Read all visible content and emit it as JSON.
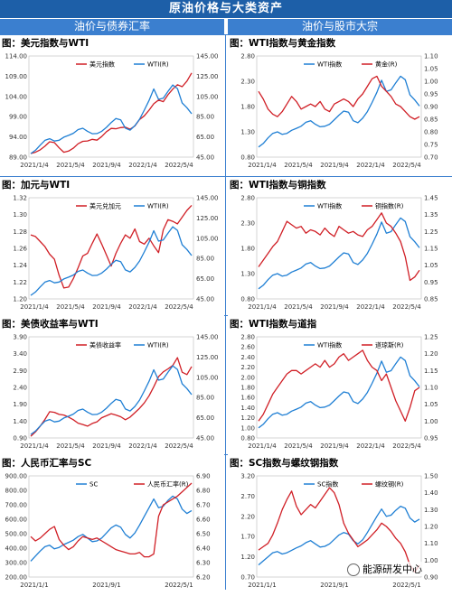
{
  "header": {
    "title": "原油价格与大类资产",
    "left_section": "油价与债券汇率",
    "right_section": "油价与股市大宗"
  },
  "watermark": "能源研发中心",
  "colors": {
    "red": "#d01f26",
    "blue": "#1f7fd4"
  },
  "chart_data": [
    {
      "title": "图：美元指数与WTI",
      "type": "line",
      "x_ticks": [
        "2021/1/4",
        "2021/5/4",
        "2021/9/4",
        "2022/1/4",
        "2022/5/4"
      ],
      "yleft": {
        "ticks": [
          "89.00",
          "94.00",
          "99.00",
          "104.00",
          "109.00",
          "114.00"
        ],
        "lim": [
          89,
          114
        ]
      },
      "yright": {
        "ticks": [
          "45.00",
          "65.00",
          "85.00",
          "105.00",
          "125.00",
          "145.00"
        ],
        "lim": [
          45,
          145
        ]
      },
      "series": [
        {
          "name": "美元指数",
          "color": "red",
          "axis": "left",
          "values": [
            89.9,
            90.2,
            90.8,
            91.7,
            92.8,
            92.6,
            91.3,
            90.2,
            90.5,
            91.2,
            92.3,
            92.9,
            93.0,
            93.4,
            93.2,
            94.1,
            95.3,
            96.1,
            96.0,
            96.3,
            96.4,
            95.9,
            96.7,
            98.3,
            99.2,
            100.6,
            102.2,
            103.1,
            102.7,
            104.4,
            105.8,
            106.9,
            106.4,
            107.8,
            109.8
          ]
        },
        {
          "name": "WTI(R)",
          "color": "blue",
          "axis": "right",
          "values": [
            48.5,
            51.8,
            56.9,
            61.6,
            63.2,
            60.9,
            61.7,
            64.7,
            66.5,
            68.6,
            72.2,
            73.6,
            70.5,
            68.1,
            68.3,
            70.5,
            74.5,
            79.2,
            83.2,
            81.9,
            73.7,
            71.7,
            76.2,
            82.5,
            91.4,
            101.1,
            112.4,
            102.1,
            103.2,
            109.9,
            116.3,
            112.8,
            98.6,
            93.8,
            87.9
          ]
        }
      ]
    },
    {
      "title": "图：WTI指数与黄金指数",
      "type": "line",
      "x_ticks": [
        "2021/1/4",
        "2021/5/4",
        "2021/9/4",
        "2022/1/4",
        "2022/5/4"
      ],
      "yleft": {
        "ticks": [
          "0.80",
          "1.30",
          "1.80",
          "2.30",
          "2.80"
        ],
        "lim": [
          0.8,
          2.8
        ]
      },
      "yright": {
        "ticks": [
          "0.70",
          "0.75",
          "0.80",
          "0.85",
          "0.90",
          "0.95",
          "1.00",
          "1.05",
          "1.10"
        ],
        "lim": [
          0.7,
          1.1
        ]
      },
      "series": [
        {
          "name": "WTI指数",
          "color": "blue",
          "axis": "left",
          "values": [
            1.0,
            1.07,
            1.18,
            1.27,
            1.3,
            1.25,
            1.27,
            1.33,
            1.37,
            1.41,
            1.49,
            1.52,
            1.45,
            1.4,
            1.41,
            1.45,
            1.54,
            1.63,
            1.71,
            1.69,
            1.52,
            1.48,
            1.57,
            1.7,
            1.88,
            2.08,
            2.32,
            2.1,
            2.13,
            2.27,
            2.4,
            2.33,
            2.03,
            1.93,
            1.81
          ]
        },
        {
          "name": "黄金(R)",
          "color": "red",
          "axis": "right",
          "values": [
            0.96,
            0.93,
            0.89,
            0.87,
            0.86,
            0.88,
            0.91,
            0.94,
            0.92,
            0.89,
            0.9,
            0.91,
            0.9,
            0.92,
            0.89,
            0.88,
            0.91,
            0.92,
            0.93,
            0.92,
            0.9,
            0.93,
            0.95,
            0.98,
            1.01,
            1.02,
            0.98,
            0.96,
            0.94,
            0.91,
            0.9,
            0.88,
            0.86,
            0.85,
            0.86
          ]
        }
      ]
    },
    {
      "title": "图：加元与WTI",
      "type": "line",
      "x_ticks": [
        "2021/1/4",
        "2021/5/4",
        "2021/9/4",
        "2022/1/4",
        "2022/5/4"
      ],
      "yleft": {
        "ticks": [
          "1.20",
          "1.22",
          "1.24",
          "1.26",
          "1.28",
          "1.30",
          "1.32"
        ],
        "lim": [
          1.2,
          1.32
        ]
      },
      "yright": {
        "ticks": [
          "45.00",
          "65.00",
          "85.00",
          "105.00",
          "125.00",
          "145.00"
        ],
        "lim": [
          45,
          145
        ]
      },
      "series": [
        {
          "name": "美元兑加元",
          "color": "red",
          "axis": "left",
          "values": [
            1.276,
            1.274,
            1.268,
            1.262,
            1.253,
            1.247,
            1.228,
            1.213,
            1.214,
            1.224,
            1.237,
            1.251,
            1.254,
            1.266,
            1.277,
            1.265,
            1.252,
            1.239,
            1.254,
            1.266,
            1.276,
            1.272,
            1.283,
            1.268,
            1.265,
            1.272,
            1.263,
            1.255,
            1.282,
            1.294,
            1.292,
            1.289,
            1.297,
            1.305,
            1.311
          ]
        },
        {
          "name": "WTI(R)",
          "color": "blue",
          "axis": "right",
          "values": [
            48.5,
            51.8,
            56.9,
            61.6,
            63.2,
            60.9,
            61.7,
            64.7,
            66.5,
            68.6,
            72.2,
            73.6,
            70.5,
            68.1,
            68.3,
            70.5,
            74.5,
            79.2,
            83.2,
            81.9,
            73.7,
            71.7,
            76.2,
            82.5,
            91.4,
            101.1,
            112.4,
            102.1,
            103.2,
            109.9,
            116.3,
            112.8,
            98.6,
            93.8,
            87.9
          ]
        }
      ]
    },
    {
      "title": "图：WTI指数与铜指数",
      "type": "line",
      "x_ticks": [
        "2021/1/4",
        "2021/5/4",
        "2021/9/4",
        "2022/1/4",
        "2022/5/4"
      ],
      "yleft": {
        "ticks": [
          "0.80",
          "1.30",
          "1.80",
          "2.30",
          "2.80"
        ],
        "lim": [
          0.8,
          2.8
        ]
      },
      "yright": {
        "ticks": [
          "0.85",
          "0.95",
          "1.05",
          "1.15",
          "1.25",
          "1.35",
          "1.45"
        ],
        "lim": [
          0.85,
          1.45
        ]
      },
      "series": [
        {
          "name": "WTI指数",
          "color": "blue",
          "axis": "left",
          "values": [
            1.0,
            1.07,
            1.18,
            1.27,
            1.3,
            1.25,
            1.27,
            1.33,
            1.37,
            1.41,
            1.49,
            1.52,
            1.45,
            1.4,
            1.41,
            1.45,
            1.54,
            1.63,
            1.71,
            1.69,
            1.52,
            1.48,
            1.57,
            1.7,
            1.88,
            2.08,
            2.32,
            2.1,
            2.13,
            2.27,
            2.4,
            2.33,
            2.03,
            1.93,
            1.81
          ]
        },
        {
          "name": "铜指数(R)",
          "color": "red",
          "axis": "right",
          "values": [
            1.04,
            1.08,
            1.12,
            1.16,
            1.19,
            1.25,
            1.31,
            1.29,
            1.27,
            1.28,
            1.24,
            1.26,
            1.25,
            1.23,
            1.27,
            1.24,
            1.22,
            1.28,
            1.26,
            1.24,
            1.25,
            1.23,
            1.22,
            1.26,
            1.28,
            1.32,
            1.36,
            1.3,
            1.28,
            1.24,
            1.19,
            1.1,
            0.96,
            0.98,
            1.02
          ]
        }
      ]
    },
    {
      "title": "图：美债收益率与WTI",
      "type": "line",
      "x_ticks": [
        "2021/1/4",
        "2021/5/4",
        "2021/9/4",
        "2022/1/4",
        "2022/5/4"
      ],
      "yleft": {
        "ticks": [
          "0.90",
          "1.40",
          "1.90",
          "2.40",
          "2.90",
          "3.40",
          "3.90"
        ],
        "lim": [
          0.9,
          3.9
        ]
      },
      "yright": {
        "ticks": [
          "45.00",
          "65.00",
          "85.00",
          "105.00",
          "125.00",
          "145.00"
        ],
        "lim": [
          45,
          145
        ]
      },
      "series": [
        {
          "name": "美债收益率",
          "color": "red",
          "axis": "left",
          "values": [
            0.95,
            1.08,
            1.25,
            1.45,
            1.68,
            1.66,
            1.6,
            1.58,
            1.52,
            1.44,
            1.34,
            1.3,
            1.25,
            1.33,
            1.38,
            1.5,
            1.56,
            1.62,
            1.58,
            1.53,
            1.44,
            1.52,
            1.65,
            1.78,
            1.94,
            2.15,
            2.42,
            2.72,
            2.86,
            2.95,
            3.05,
            3.28,
            2.85,
            2.78,
            3.02
          ]
        },
        {
          "name": "WTI(R)",
          "color": "blue",
          "axis": "right",
          "values": [
            48.5,
            51.8,
            56.9,
            61.6,
            63.2,
            60.9,
            61.7,
            64.7,
            66.5,
            68.6,
            72.2,
            73.6,
            70.5,
            68.1,
            68.3,
            70.5,
            74.5,
            79.2,
            83.2,
            81.9,
            73.7,
            71.7,
            76.2,
            82.5,
            91.4,
            101.1,
            112.4,
            102.1,
            103.2,
            109.9,
            116.3,
            112.8,
            98.6,
            93.8,
            87.9
          ]
        }
      ]
    },
    {
      "title": "图：WTI指数与道指",
      "type": "line",
      "x_ticks": [
        "2021/1/4",
        "2021/5/4",
        "2021/9/4",
        "2022/1/4",
        "2022/5/4"
      ],
      "yleft": {
        "ticks": [
          "0.80",
          "1.00",
          "1.20",
          "1.40",
          "1.60",
          "1.80",
          "2.00",
          "2.20",
          "2.40",
          "2.60",
          "2.80"
        ],
        "lim": [
          0.8,
          2.8
        ]
      },
      "yright": {
        "ticks": [
          "0.95",
          "1.00",
          "1.05",
          "1.10",
          "1.15",
          "1.20",
          "1.25"
        ],
        "lim": [
          0.95,
          1.25
        ]
      },
      "series": [
        {
          "name": "WTI指数",
          "color": "blue",
          "axis": "left",
          "values": [
            1.0,
            1.07,
            1.18,
            1.27,
            1.3,
            1.25,
            1.27,
            1.33,
            1.37,
            1.41,
            1.49,
            1.52,
            1.45,
            1.4,
            1.41,
            1.45,
            1.54,
            1.63,
            1.71,
            1.69,
            1.52,
            1.48,
            1.57,
            1.7,
            1.88,
            2.08,
            2.32,
            2.1,
            2.13,
            2.27,
            2.4,
            2.33,
            2.03,
            1.93,
            1.81
          ]
        },
        {
          "name": "道琼斯(R)",
          "color": "red",
          "axis": "right",
          "values": [
            1.0,
            1.02,
            1.05,
            1.08,
            1.1,
            1.12,
            1.14,
            1.15,
            1.15,
            1.14,
            1.15,
            1.16,
            1.17,
            1.16,
            1.18,
            1.16,
            1.17,
            1.19,
            1.2,
            1.18,
            1.19,
            1.2,
            1.21,
            1.18,
            1.16,
            1.15,
            1.12,
            1.14,
            1.1,
            1.06,
            1.03,
            1.0,
            1.04,
            1.09,
            1.1
          ]
        }
      ]
    },
    {
      "title": "图：人民币汇率与SC",
      "type": "line",
      "x_ticks": [
        "2021/1/1",
        "2021/9/1",
        "2022/5/1"
      ],
      "yleft": {
        "ticks": [
          "200.00",
          "300.00",
          "400.00",
          "500.00",
          "600.00",
          "700.00",
          "800.00",
          "900.00"
        ],
        "lim": [
          200,
          900
        ]
      },
      "yright": {
        "ticks": [
          "6.20",
          "6.30",
          "6.40",
          "6.50",
          "6.60",
          "6.70",
          "6.80",
          "6.90"
        ],
        "lim": [
          6.2,
          6.9
        ]
      },
      "series": [
        {
          "name": "SC",
          "color": "blue",
          "axis": "left",
          "values": [
            310,
            345,
            380,
            410,
            420,
            395,
            405,
            425,
            440,
            455,
            480,
            495,
            470,
            445,
            450,
            470,
            505,
            540,
            560,
            545,
            495,
            470,
            505,
            560,
            620,
            680,
            740,
            680,
            690,
            730,
            760,
            740,
            670,
            640,
            660
          ]
        },
        {
          "name": "人民币汇率(R)",
          "color": "red",
          "axis": "right",
          "values": [
            6.48,
            6.45,
            6.47,
            6.5,
            6.53,
            6.55,
            6.46,
            6.42,
            6.39,
            6.41,
            6.45,
            6.48,
            6.47,
            6.46,
            6.47,
            6.45,
            6.43,
            6.41,
            6.39,
            6.38,
            6.37,
            6.36,
            6.36,
            6.37,
            6.34,
            6.34,
            6.36,
            6.62,
            6.7,
            6.72,
            6.74,
            6.76,
            6.79,
            6.82,
            6.85
          ]
        }
      ]
    },
    {
      "title": "图：SC指数与螺纹钢指数",
      "type": "line",
      "x_ticks": [
        "2021/1/1",
        "2021/9/1",
        "2022/5/1"
      ],
      "yleft": {
        "ticks": [
          "0.70",
          "1.20",
          "1.70",
          "2.20",
          "2.70",
          "3.20"
        ],
        "lim": [
          0.7,
          3.2
        ]
      },
      "yright": {
        "ticks": [
          "0.90",
          "1.00",
          "1.10",
          "1.20",
          "1.30",
          "1.40",
          "1.50"
        ],
        "lim": [
          0.9,
          1.5
        ]
      },
      "series": [
        {
          "name": "SC指数",
          "color": "blue",
          "axis": "left",
          "values": [
            1.0,
            1.1,
            1.2,
            1.3,
            1.33,
            1.27,
            1.3,
            1.36,
            1.42,
            1.47,
            1.55,
            1.6,
            1.52,
            1.44,
            1.46,
            1.52,
            1.63,
            1.74,
            1.8,
            1.76,
            1.6,
            1.52,
            1.62,
            1.8,
            2.0,
            2.2,
            2.38,
            2.2,
            2.23,
            2.35,
            2.45,
            2.4,
            2.16,
            2.06,
            2.13
          ]
        },
        {
          "name": "螺纹钢(R)",
          "color": "red",
          "axis": "right",
          "values": [
            1.06,
            1.08,
            1.1,
            1.15,
            1.22,
            1.3,
            1.36,
            1.41,
            1.32,
            1.27,
            1.3,
            1.33,
            1.31,
            1.35,
            1.39,
            1.43,
            1.4,
            1.33,
            1.22,
            1.16,
            1.12,
            1.08,
            1.1,
            1.12,
            1.15,
            1.18,
            1.22,
            1.2,
            1.17,
            1.13,
            1.1,
            1.05,
            0.97,
            0.93,
            0.97
          ]
        }
      ]
    }
  ]
}
